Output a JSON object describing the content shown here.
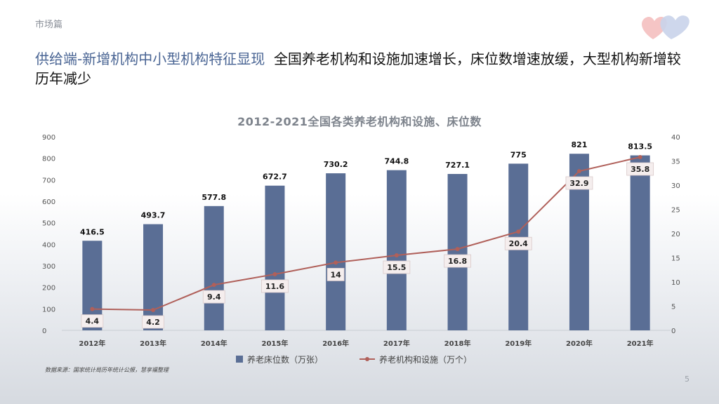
{
  "section": "市场篇",
  "headline": {
    "accent": "供给端-新增机构中小型机构特征显现",
    "body": "全国养老机构和设施加速增长，床位数增速放缓，大型机构新增较历年减少"
  },
  "source": "数据来源：国家统计局历年统计公报，慧享福整理",
  "page_number": "5",
  "logo": {
    "icon": "heart-logo-icon"
  },
  "colors": {
    "bar": "#5a6e95",
    "line": "#b0605a",
    "accent": "#4a6594"
  },
  "chart_data": {
    "type": "bar+line",
    "title": "2012-2021全国各类养老机构和设施、床位数",
    "categories": [
      "2012年",
      "2013年",
      "2014年",
      "2015年",
      "2016年",
      "2017年",
      "2018年",
      "2019年",
      "2020年",
      "2021年"
    ],
    "series": [
      {
        "name": "养老床位数（万张）",
        "type": "bar",
        "axis": "left",
        "values": [
          416.5,
          493.7,
          577.8,
          672.7,
          730.2,
          744.8,
          727.1,
          775,
          821,
          813.5
        ]
      },
      {
        "name": "养老机构和设施（万个）",
        "type": "line",
        "axis": "right",
        "values": [
          4.4,
          4.2,
          9.4,
          11.6,
          14,
          15.5,
          16.8,
          20.4,
          32.9,
          35.8
        ]
      }
    ],
    "y_left": {
      "min": 0,
      "max": 900,
      "ticks": [
        0,
        100,
        200,
        300,
        400,
        500,
        600,
        700,
        800,
        900
      ]
    },
    "y_right": {
      "min": 0,
      "max": 40,
      "ticks": [
        0,
        5,
        10,
        15,
        20,
        25,
        30,
        35,
        40
      ]
    },
    "grid": false,
    "legend_position": "bottom"
  }
}
